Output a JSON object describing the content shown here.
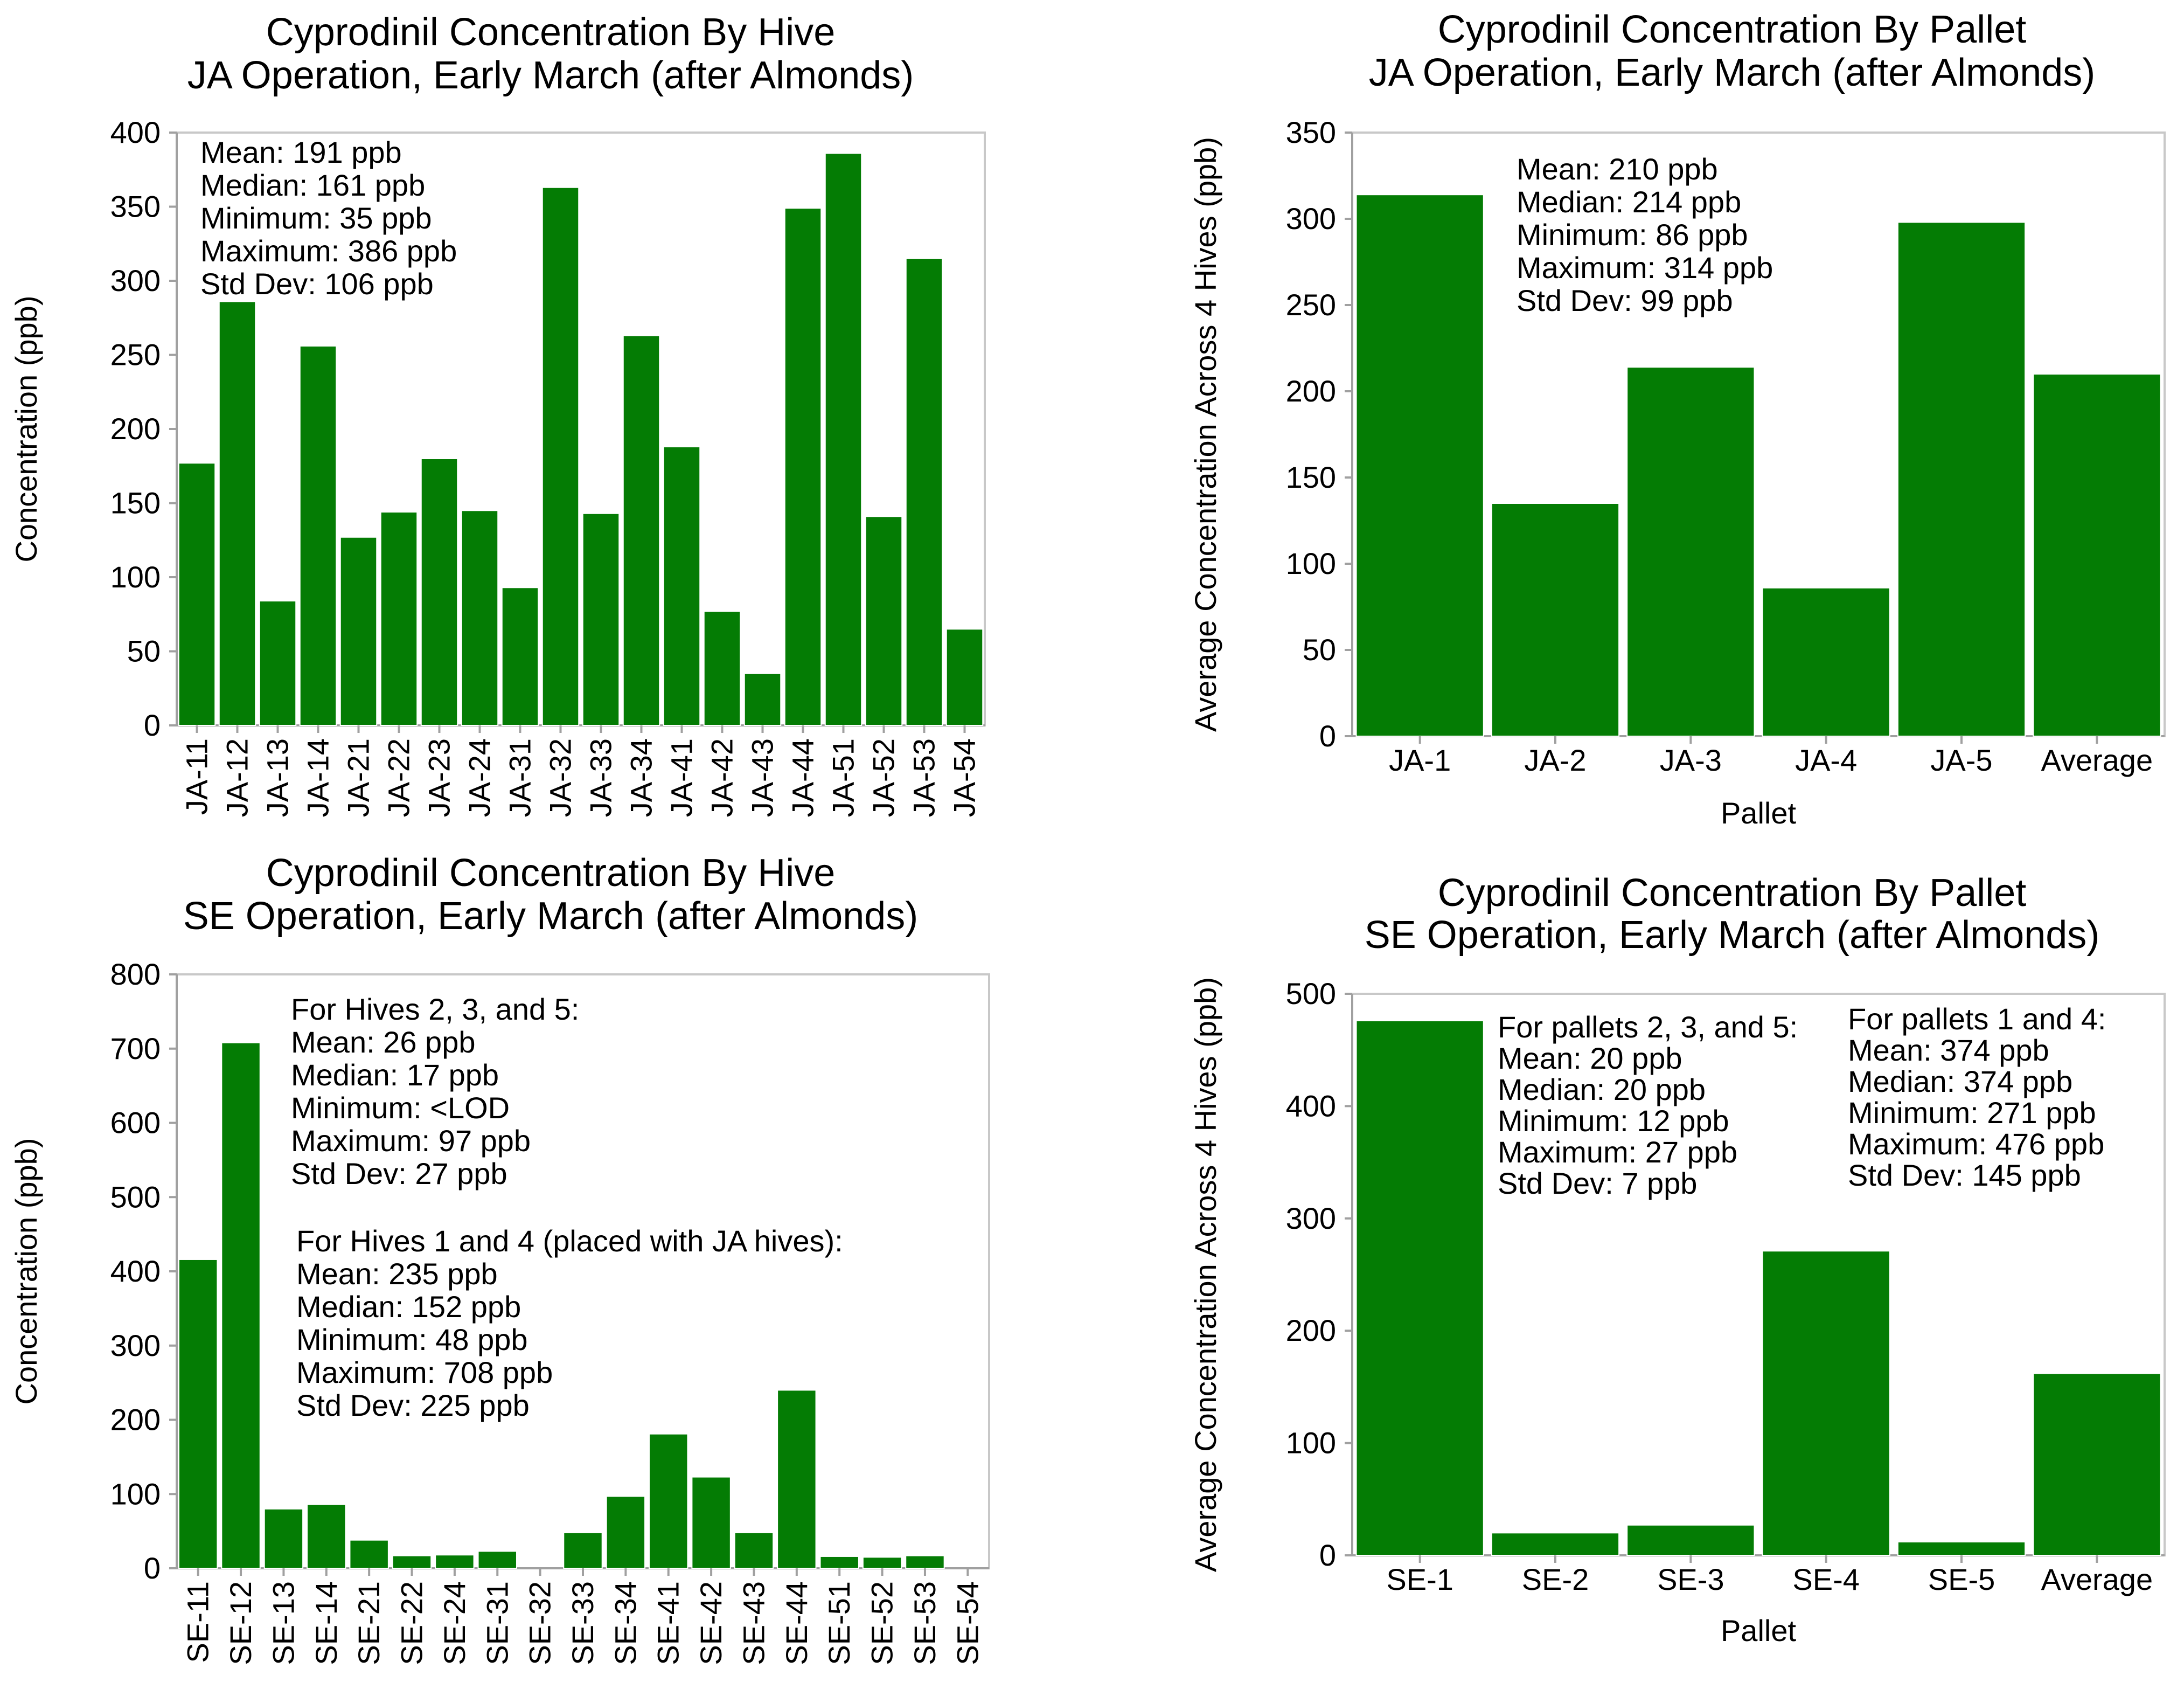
{
  "colors": {
    "bar": "#047c04",
    "axis": "#a0a0a0",
    "frame": "#c8c8c8",
    "text": "#000000"
  },
  "chart_data": [
    {
      "type": "bar",
      "title_lines": [
        "Cyprodinil Concentration By Hive",
        "JA Operation, Early March (after Almonds)"
      ],
      "ylabel": "Concentration (ppb)",
      "xlabel": "",
      "ylim": [
        0,
        400
      ],
      "yticks": [
        0,
        50,
        100,
        150,
        200,
        250,
        300,
        350,
        400
      ],
      "categories": [
        "JA-11",
        "JA-12",
        "JA-13",
        "JA-14",
        "JA-21",
        "JA-22",
        "JA-23",
        "JA-24",
        "JA-31",
        "JA-32",
        "JA-33",
        "JA-34",
        "JA-41",
        "JA-42",
        "JA-43",
        "JA-44",
        "JA-51",
        "JA-52",
        "JA-53",
        "JA-54"
      ],
      "values": [
        177,
        286,
        84,
        256,
        127,
        144,
        180,
        145,
        93,
        363,
        143,
        263,
        188,
        77,
        35,
        349,
        386,
        141,
        315,
        65
      ],
      "annotations": [
        {
          "lines": [
            "Mean: 191 ppb",
            "Median: 161 ppb",
            "Minimum: 35 ppb",
            "Maximum: 386 ppb",
            "Std Dev: 106 ppb"
          ]
        }
      ]
    },
    {
      "type": "bar",
      "title_lines": [
        "Cyprodinil Concentration By Pallet",
        "JA Operation, Early March (after Almonds)"
      ],
      "ylabel": "Average Concentration Across 4 Hives (ppb)",
      "xlabel": "Pallet",
      "ylim": [
        0,
        350
      ],
      "yticks": [
        0,
        50,
        100,
        150,
        200,
        250,
        300,
        350
      ],
      "categories": [
        "JA-1",
        "JA-2",
        "JA-3",
        "JA-4",
        "JA-5",
        "Average"
      ],
      "values": [
        314,
        135,
        214,
        86,
        298,
        210
      ],
      "annotations": [
        {
          "lines": [
            "Mean: 210 ppb",
            "Median: 214 ppb",
            "Minimum: 86 ppb",
            "Maximum: 314 ppb",
            "Std Dev: 99 ppb"
          ]
        }
      ]
    },
    {
      "type": "bar",
      "title_lines": [
        "Cyprodinil Concentration By Hive",
        "SE Operation, Early March (after Almonds)"
      ],
      "ylabel": "Concentration (ppb)",
      "xlabel": "",
      "ylim": [
        0,
        800
      ],
      "yticks": [
        0,
        100,
        200,
        300,
        400,
        500,
        600,
        700,
        800
      ],
      "categories": [
        "SE-11",
        "SE-12",
        "SE-13",
        "SE-14",
        "SE-21",
        "SE-22",
        "SE-24",
        "SE-31",
        "SE-32",
        "SE-33",
        "SE-34",
        "SE-41",
        "SE-42",
        "SE-43",
        "SE-44",
        "SE-51",
        "SE-52",
        "SE-53",
        "SE-54"
      ],
      "values": [
        416,
        708,
        80,
        86,
        38,
        17,
        18,
        23,
        0,
        48,
        97,
        181,
        123,
        48,
        240,
        16,
        15,
        17,
        0
      ],
      "annotations": [
        {
          "lines": [
            "For Hives 2, 3, and 5:",
            "Mean: 26 ppb",
            "Median: 17 ppb",
            "Minimum: <LOD",
            "Maximum: 97 ppb",
            "Std Dev: 27 ppb"
          ]
        },
        {
          "lines": [
            "For Hives 1 and 4 (placed with JA hives):",
            "Mean: 235 ppb",
            "Median: 152 ppb",
            "Minimum: 48 ppb",
            "Maximum: 708 ppb",
            "Std Dev: 225 ppb"
          ]
        }
      ]
    },
    {
      "type": "bar",
      "title_lines": [
        "Cyprodinil Concentration By Pallet",
        "SE Operation, Early March (after Almonds)"
      ],
      "ylabel": "Average Concentration Across 4 Hives (ppb)",
      "xlabel": "Pallet",
      "ylim": [
        0,
        500
      ],
      "yticks": [
        0,
        100,
        200,
        300,
        400,
        500
      ],
      "categories": [
        "SE-1",
        "SE-2",
        "SE-3",
        "SE-4",
        "SE-5",
        "Average"
      ],
      "values": [
        476,
        20,
        27,
        271,
        12,
        162
      ],
      "annotations": [
        {
          "lines": [
            "For pallets 2, 3, and 5:",
            "Mean: 20 ppb",
            "Median: 20 ppb",
            "Minimum: 12 ppb",
            "Maximum: 27 ppb",
            "Std Dev: 7 ppb"
          ]
        },
        {
          "lines": [
            "For pallets 1 and 4:",
            "Mean: 374 ppb",
            "Median: 374 ppb",
            "Minimum: 271 ppb",
            "Maximum: 476 ppb",
            "Std Dev: 145 ppb"
          ]
        }
      ]
    }
  ]
}
